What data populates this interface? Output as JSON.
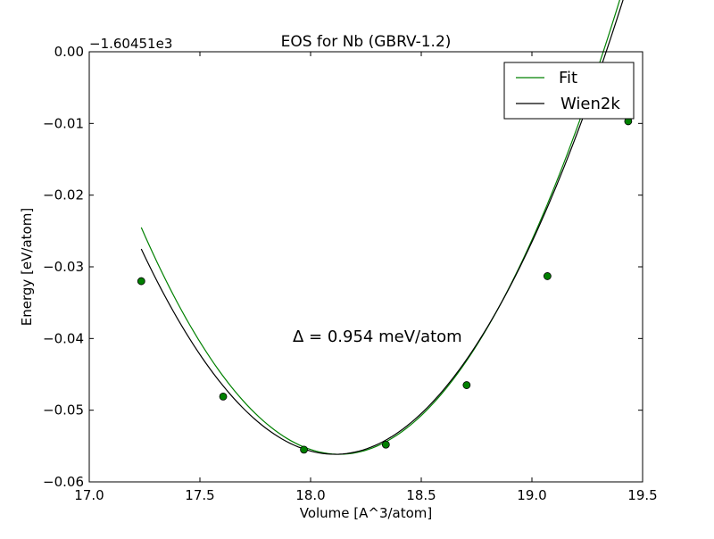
{
  "chart_data": {
    "type": "line",
    "title": "EOS for Nb (GBRV-1.2)",
    "xlabel": "Volume [A^3/atom]",
    "ylabel": "Energy [eV/atom]",
    "offset_label": "−1.60451e3",
    "annotation": "Δ = 0.954 meV/atom",
    "xlim": [
      17.0,
      19.5
    ],
    "ylim": [
      -0.06,
      0.0
    ],
    "x_ticks": [
      17.0,
      17.5,
      18.0,
      18.5,
      19.0,
      19.5
    ],
    "x_tick_labels": [
      "17.0",
      "17.5",
      "18.0",
      "18.5",
      "19.0",
      "19.5"
    ],
    "y_ticks": [
      0.0,
      -0.01,
      -0.02,
      -0.03,
      -0.04,
      -0.05,
      -0.06
    ],
    "y_tick_labels": [
      "0.00",
      "−0.01",
      "−0.02",
      "−0.03",
      "−0.04",
      "−0.05",
      "−0.06"
    ],
    "grid": false,
    "legend_position": "top-right",
    "series": [
      {
        "name": "Fit",
        "kind": "line",
        "color": "#008000",
        "curve": {
          "x_range": [
            17.235,
            19.435
          ],
          "v0": 18.13,
          "e_min": -0.05615,
          "curvature": 0.0395
        }
      },
      {
        "name": "Wien2k",
        "kind": "line",
        "color": "#000000",
        "curve": {
          "x_range": [
            17.235,
            19.42
          ],
          "v0": 18.11,
          "e_min": -0.05615,
          "curvature": 0.0374
        }
      },
      {
        "kind": "points",
        "color": "#008000",
        "x": [
          17.235,
          17.605,
          17.97,
          18.34,
          18.705,
          19.07,
          19.435
        ],
        "y": [
          -0.032,
          -0.0481,
          -0.0555,
          -0.0548,
          -0.0465,
          -0.0313,
          -0.0097
        ]
      }
    ]
  }
}
